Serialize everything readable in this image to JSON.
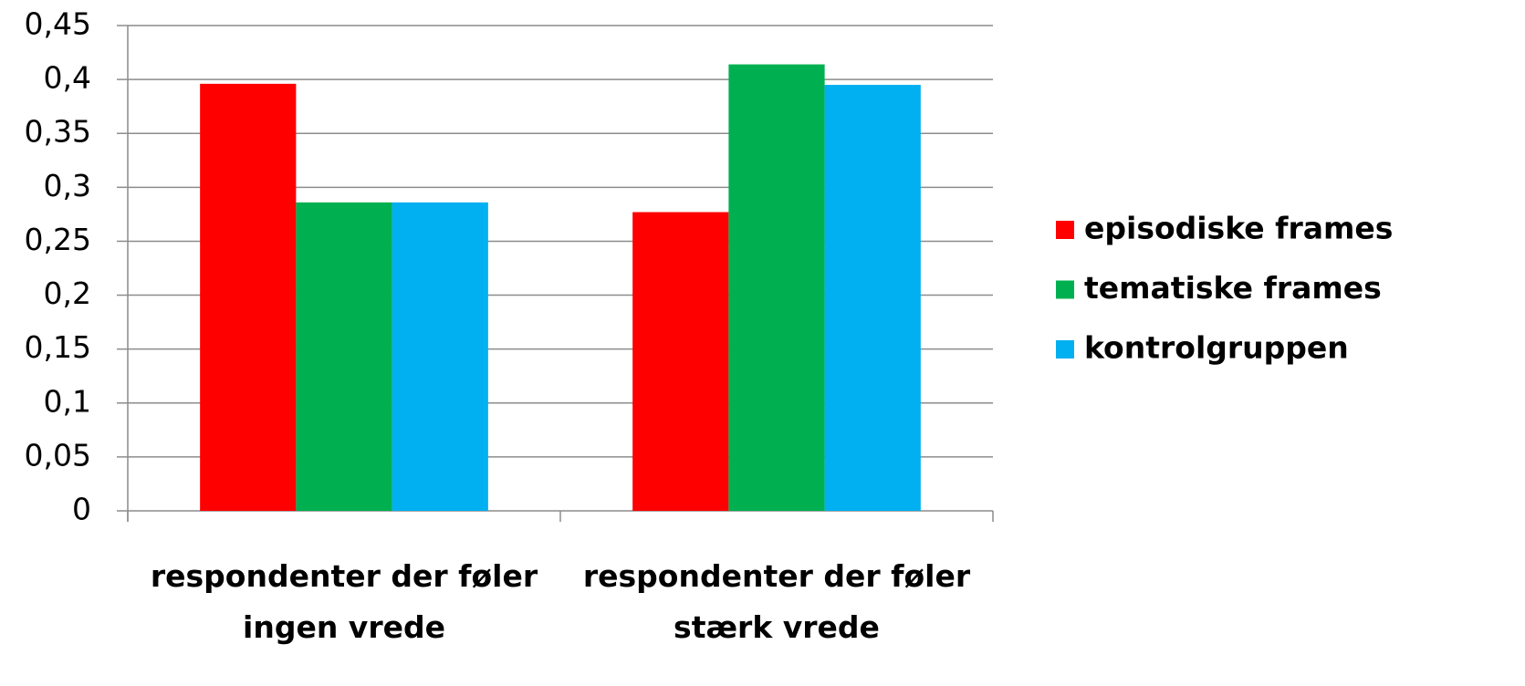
{
  "chart_data": {
    "type": "bar",
    "categories": [
      "respondenter der føler ingen vrede",
      "respondenter der føler stærk vrede"
    ],
    "series": [
      {
        "name": "episodiske frames",
        "color": "#ff0000",
        "values": [
          0.396,
          0.277
        ]
      },
      {
        "name": "tematiske frames",
        "color": "#00b050",
        "values": [
          0.286,
          0.414
        ]
      },
      {
        "name": "kontrolgruppen",
        "color": "#00b0f0",
        "values": [
          0.286,
          0.395
        ]
      }
    ],
    "ylim": [
      0,
      0.45
    ],
    "yticks": [
      0,
      {
        "value": 0.05,
        "label": "0,05"
      },
      {
        "value": 0.1,
        "label": "0,1"
      },
      {
        "value": 0.15,
        "label": "0,15"
      },
      {
        "value": 0.2,
        "label": "0,2"
      },
      {
        "value": 0.25,
        "label": "0,25"
      },
      {
        "value": 0.3,
        "label": "0,3"
      },
      {
        "value": 0.35,
        "label": "0,35"
      },
      {
        "value": 0.4,
        "label": "0,4"
      },
      {
        "value": 0.45,
        "label": "0,45"
      }
    ],
    "grid": true,
    "legend": "right"
  }
}
